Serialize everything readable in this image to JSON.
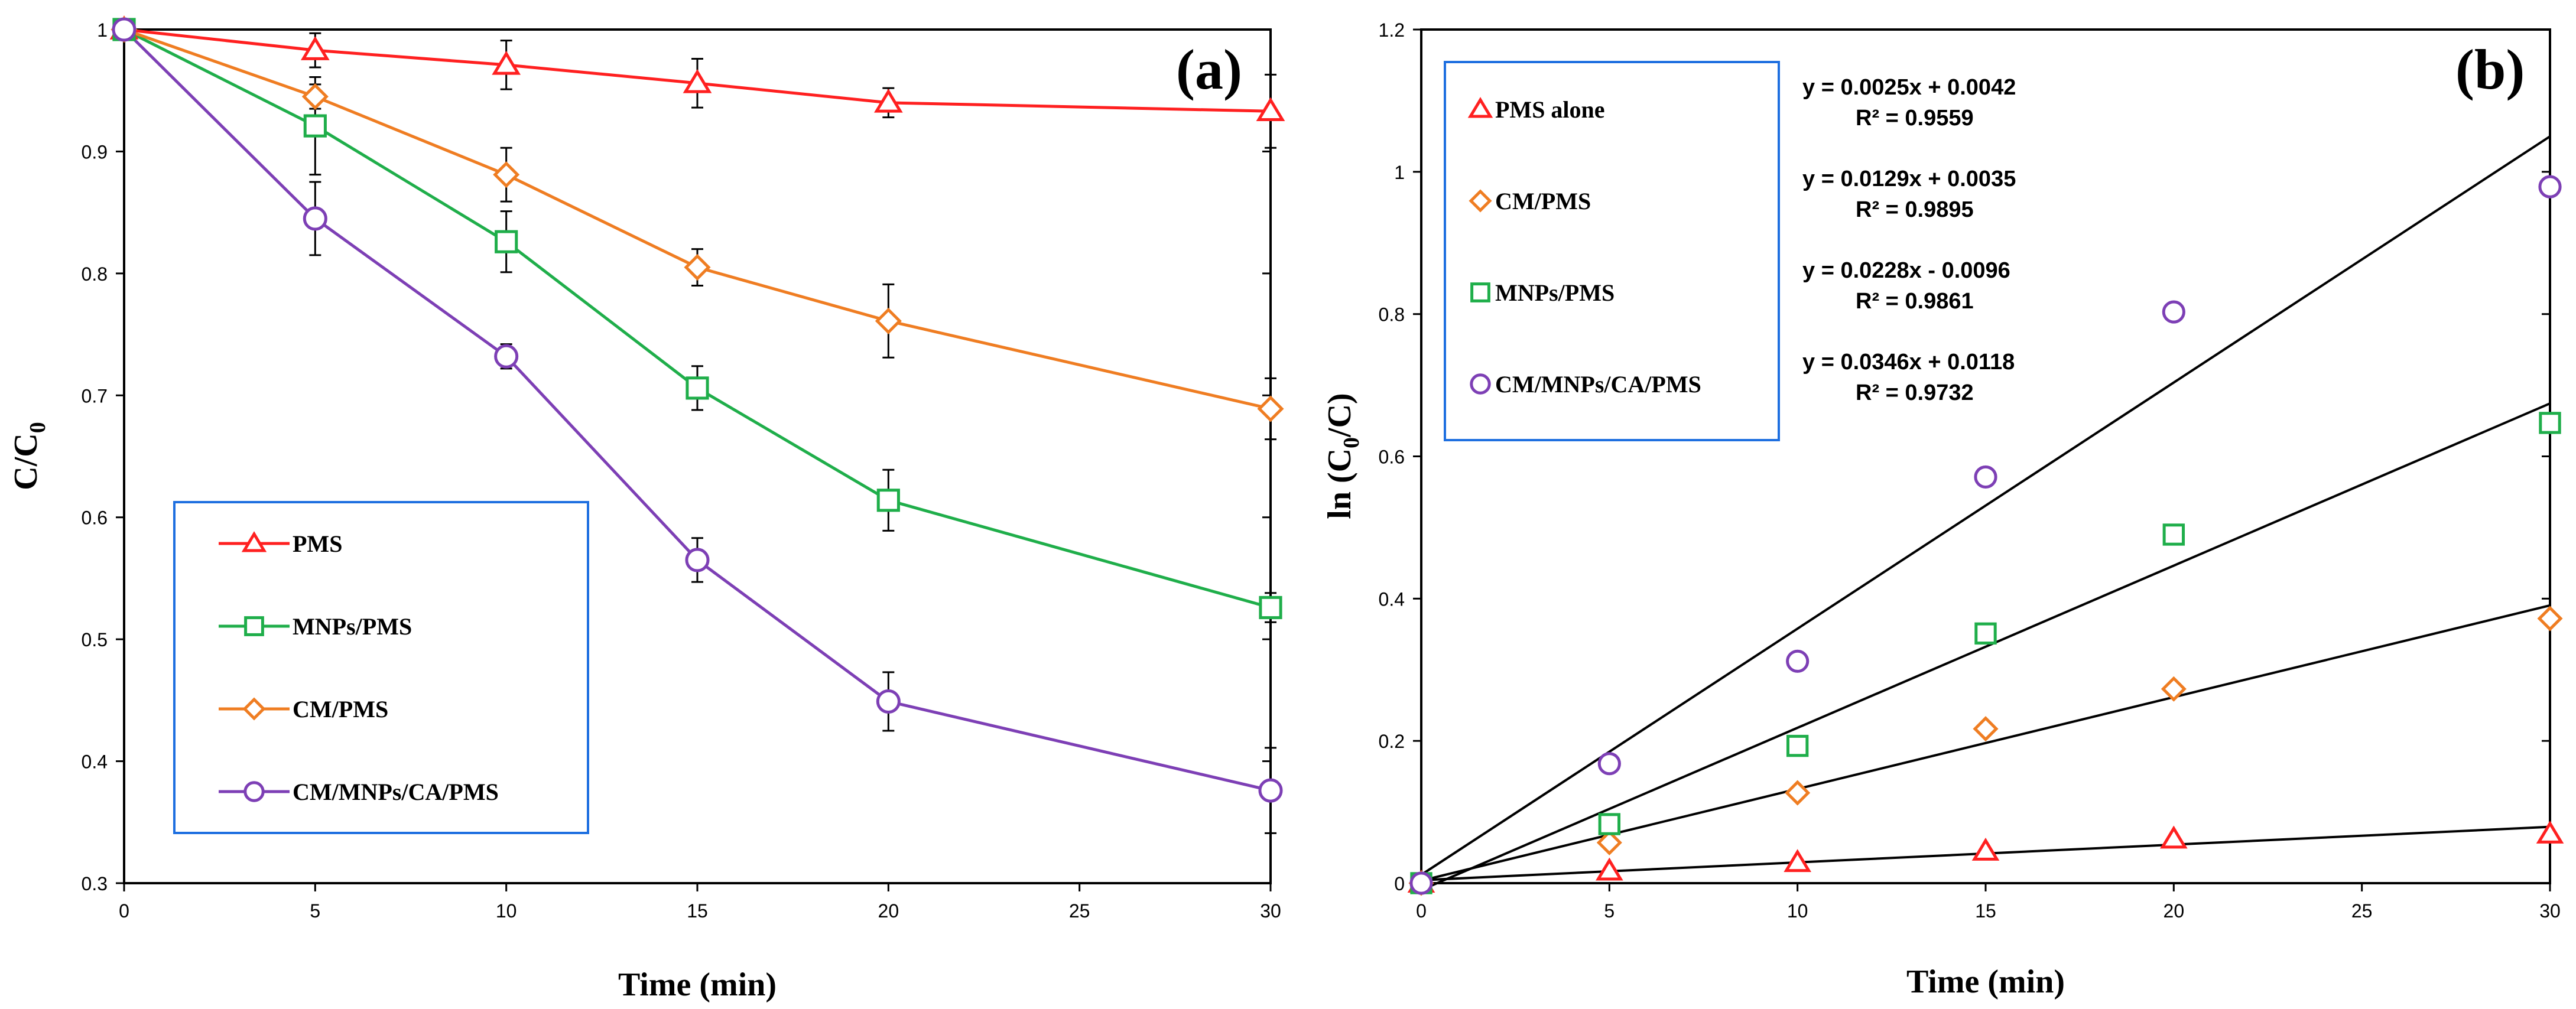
{
  "chart_data": [
    {
      "type": "line",
      "panel_label": "(a)",
      "xlabel": "Time (min)",
      "ylabel": "C/C",
      "ylabel_sub": "0",
      "xlim": [
        0,
        30
      ],
      "ylim": [
        0.3,
        1.0
      ],
      "xticks": [
        0,
        5,
        10,
        15,
        20,
        25,
        30
      ],
      "yticks": [
        0.3,
        0.4,
        0.5,
        0.6,
        0.7,
        0.8,
        0.9,
        1
      ],
      "ytick_labels": [
        "0.3",
        "0.4",
        "0.5",
        "0.6",
        "0.7",
        "0.8",
        "0.9",
        "1"
      ],
      "x": [
        0,
        5,
        10,
        15,
        20,
        30
      ],
      "legend_position": "bottom-left",
      "series": [
        {
          "name": "PMS",
          "color": "#ff2020",
          "marker": "triangle",
          "values": [
            1.0,
            0.983,
            0.971,
            0.956,
            0.94,
            0.933
          ],
          "errors": [
            0,
            0.014,
            0.02,
            0.02,
            0.012,
            0.03
          ]
        },
        {
          "name": "MNPs/PMS",
          "color": "#1fae4a",
          "marker": "square",
          "values": [
            1.0,
            0.921,
            0.826,
            0.706,
            0.614,
            0.526
          ],
          "errors": [
            0,
            0.04,
            0.025,
            0.018,
            0.025,
            0.012
          ]
        },
        {
          "name": "CM/PMS",
          "color": "#ef7d22",
          "marker": "diamond",
          "values": [
            1.0,
            0.945,
            0.881,
            0.805,
            0.761,
            0.689
          ],
          "errors": [
            0,
            0.01,
            0.022,
            0.015,
            0.03,
            0.025
          ]
        },
        {
          "name": "CM/MNPs/CA/PMS",
          "color": "#7d3fb5",
          "marker": "circle",
          "values": [
            1.0,
            0.845,
            0.732,
            0.565,
            0.449,
            0.376
          ],
          "errors": [
            0,
            0.03,
            0.01,
            0.018,
            0.024,
            0.035
          ]
        }
      ],
      "legend_order": [
        0,
        1,
        2,
        3
      ]
    },
    {
      "type": "scatter",
      "panel_label": "(b)",
      "xlabel": "Time (min)",
      "ylabel": "ln (C",
      "ylabel_sub": "0",
      "ylabel_rest": "/C)",
      "xlim": [
        0,
        30
      ],
      "ylim": [
        0,
        1.2
      ],
      "xticks": [
        0,
        5,
        10,
        15,
        20,
        25,
        30
      ],
      "yticks": [
        0,
        0.2,
        0.4,
        0.6,
        0.8,
        1,
        1.2
      ],
      "ytick_labels": [
        "0",
        "0.2",
        "0.4",
        "0.6",
        "0.8",
        "1",
        "1.2"
      ],
      "x": [
        0,
        5,
        10,
        15,
        20,
        30
      ],
      "legend_position": "top-left",
      "series": [
        {
          "name": "PMS alone",
          "color": "#ff2020",
          "marker": "triangle",
          "values": [
            0,
            0.017,
            0.029,
            0.045,
            0.062,
            0.069
          ],
          "fit": {
            "slope": 0.0025,
            "intercept": 0.0042,
            "equation": "y = 0.0025x + 0.0042",
            "r2": "R² = 0.9559"
          }
        },
        {
          "name": "CM/PMS",
          "color": "#ef7d22",
          "marker": "diamond",
          "values": [
            0,
            0.057,
            0.127,
            0.217,
            0.273,
            0.372
          ],
          "fit": {
            "slope": 0.0129,
            "intercept": 0.0035,
            "equation": "y = 0.0129x + 0.0035",
            "r2": "R² = 0.9895"
          }
        },
        {
          "name": "MNPs/PMS",
          "color": "#1fae4a",
          "marker": "square",
          "values": [
            0,
            0.083,
            0.193,
            0.351,
            0.49,
            0.647
          ],
          "fit": {
            "slope": 0.0228,
            "intercept": -0.0096,
            "equation": "y = 0.0228x - 0.0096",
            "r2": "R² = 0.9861"
          }
        },
        {
          "name": "CM/MNPs/CA/PMS",
          "color": "#7d3fb5",
          "marker": "circle",
          "values": [
            0,
            0.168,
            0.312,
            0.571,
            0.803,
            0.979
          ],
          "fit": {
            "slope": 0.0346,
            "intercept": 0.0118,
            "equation": "y = 0.0346x + 0.0118",
            "r2": "R² = 0.9732"
          }
        }
      ]
    }
  ]
}
